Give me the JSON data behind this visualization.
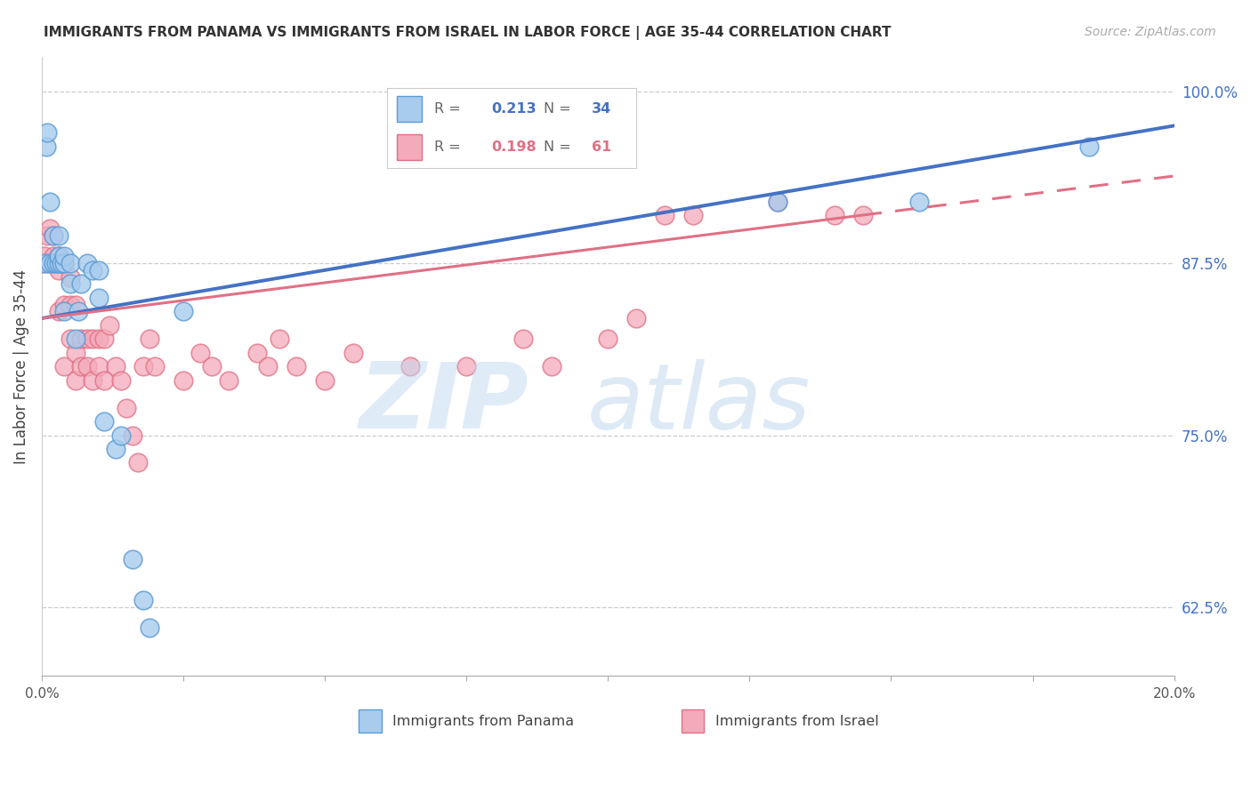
{
  "title": "IMMIGRANTS FROM PANAMA VS IMMIGRANTS FROM ISRAEL IN LABOR FORCE | AGE 35-44 CORRELATION CHART",
  "source": "Source: ZipAtlas.com",
  "ylabel": "In Labor Force | Age 35-44",
  "xlim": [
    0.0,
    0.2
  ],
  "ylim": [
    0.575,
    1.025
  ],
  "xtick_positions": [
    0.0,
    0.025,
    0.05,
    0.075,
    0.1,
    0.125,
    0.15,
    0.175,
    0.2
  ],
  "xtick_labels": [
    "0.0%",
    "",
    "",
    "",
    "",
    "",
    "",
    "",
    "20.0%"
  ],
  "ytick_labels_right": [
    "100.0%",
    "87.5%",
    "75.0%",
    "62.5%"
  ],
  "ytick_positions_right": [
    1.0,
    0.875,
    0.75,
    0.625
  ],
  "panama_color": "#A8CCEE",
  "panama_edge_color": "#5B9BD5",
  "israel_color": "#F4AABA",
  "israel_edge_color": "#E07085",
  "trend_blue": "#4472C4",
  "trend_pink": "#E07085",
  "right_axis_color": "#4472C4",
  "panama_R": "0.213",
  "panama_N": "34",
  "israel_R": "0.198",
  "israel_N": "61",
  "panama_x": [
    0.0005,
    0.0008,
    0.001,
    0.0015,
    0.0015,
    0.002,
    0.002,
    0.0025,
    0.003,
    0.003,
    0.003,
    0.0035,
    0.004,
    0.004,
    0.004,
    0.005,
    0.005,
    0.006,
    0.0065,
    0.007,
    0.008,
    0.009,
    0.01,
    0.01,
    0.011,
    0.013,
    0.014,
    0.016,
    0.018,
    0.019,
    0.025,
    0.13,
    0.155,
    0.185
  ],
  "panama_y": [
    0.875,
    0.96,
    0.97,
    0.875,
    0.92,
    0.875,
    0.895,
    0.875,
    0.875,
    0.88,
    0.895,
    0.875,
    0.84,
    0.875,
    0.88,
    0.86,
    0.875,
    0.82,
    0.84,
    0.86,
    0.875,
    0.87,
    0.85,
    0.87,
    0.76,
    0.74,
    0.75,
    0.66,
    0.63,
    0.61,
    0.84,
    0.92,
    0.92,
    0.96
  ],
  "israel_x": [
    0.0,
    0.0005,
    0.001,
    0.001,
    0.0015,
    0.002,
    0.002,
    0.002,
    0.003,
    0.003,
    0.003,
    0.0035,
    0.004,
    0.004,
    0.004,
    0.005,
    0.005,
    0.005,
    0.006,
    0.006,
    0.006,
    0.007,
    0.007,
    0.008,
    0.008,
    0.009,
    0.009,
    0.01,
    0.01,
    0.011,
    0.011,
    0.012,
    0.013,
    0.014,
    0.015,
    0.016,
    0.017,
    0.018,
    0.019,
    0.02,
    0.025,
    0.028,
    0.03,
    0.033,
    0.038,
    0.04,
    0.042,
    0.045,
    0.05,
    0.055,
    0.065,
    0.075,
    0.085,
    0.09,
    0.1,
    0.105,
    0.11,
    0.115,
    0.13,
    0.14,
    0.145
  ],
  "israel_y": [
    0.875,
    0.88,
    0.875,
    0.895,
    0.9,
    0.875,
    0.895,
    0.88,
    0.84,
    0.87,
    0.88,
    0.875,
    0.8,
    0.845,
    0.875,
    0.82,
    0.845,
    0.865,
    0.79,
    0.81,
    0.845,
    0.8,
    0.82,
    0.8,
    0.82,
    0.79,
    0.82,
    0.8,
    0.82,
    0.79,
    0.82,
    0.83,
    0.8,
    0.79,
    0.77,
    0.75,
    0.73,
    0.8,
    0.82,
    0.8,
    0.79,
    0.81,
    0.8,
    0.79,
    0.81,
    0.8,
    0.82,
    0.8,
    0.79,
    0.81,
    0.8,
    0.8,
    0.82,
    0.8,
    0.82,
    0.835,
    0.91,
    0.91,
    0.92,
    0.91,
    0.91
  ]
}
